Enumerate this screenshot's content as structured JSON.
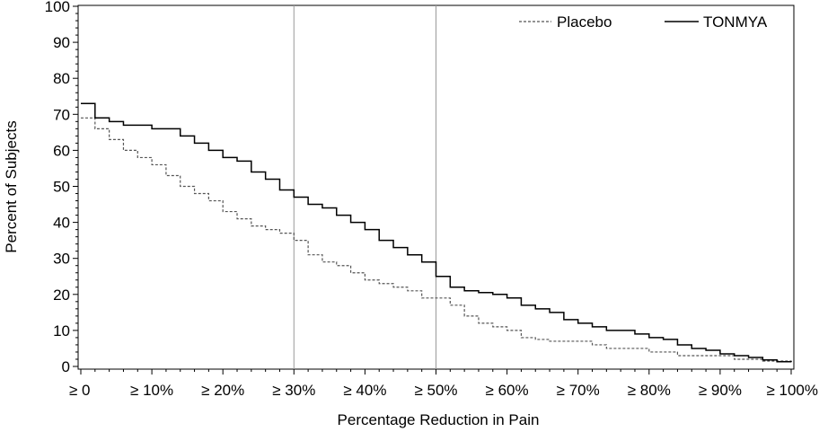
{
  "chart_data": {
    "type": "line",
    "title": "",
    "xlabel": "Percentage Reduction in Pain",
    "ylabel": "Percent of Subjects",
    "xlim": [
      0,
      100
    ],
    "ylim": [
      0,
      100
    ],
    "x_ticks": [
      0,
      10,
      20,
      30,
      40,
      50,
      60,
      70,
      80,
      90,
      100
    ],
    "x_tick_labels": [
      "≥ 0",
      "≥ 10%",
      "≥ 20%",
      "≥ 30%",
      "≥ 40%",
      "≥ 50%",
      "≥ 60%",
      "≥ 70%",
      "≥ 80%",
      "≥ 90%",
      "≥ 100%"
    ],
    "y_ticks": [
      0,
      10,
      20,
      30,
      40,
      50,
      60,
      70,
      80,
      90,
      100
    ],
    "y_tick_labels": [
      "0",
      "10",
      "20",
      "30",
      "40",
      "50",
      "60",
      "70",
      "80",
      "90",
      "100"
    ],
    "reference_lines_x": [
      30,
      50
    ],
    "grid": false,
    "legend_position": "top-right",
    "series": [
      {
        "name": "Placebo",
        "line_style": "dashed",
        "color": "#555555",
        "points": [
          [
            0,
            69
          ],
          [
            2,
            66
          ],
          [
            4,
            63
          ],
          [
            6,
            60
          ],
          [
            8,
            58
          ],
          [
            10,
            56
          ],
          [
            12,
            53
          ],
          [
            14,
            50
          ],
          [
            16,
            48
          ],
          [
            18,
            46
          ],
          [
            20,
            43
          ],
          [
            22,
            41
          ],
          [
            24,
            39
          ],
          [
            26,
            38
          ],
          [
            28,
            37
          ],
          [
            30,
            35
          ],
          [
            32,
            31
          ],
          [
            34,
            29
          ],
          [
            36,
            28
          ],
          [
            38,
            26
          ],
          [
            40,
            24
          ],
          [
            42,
            23
          ],
          [
            44,
            22
          ],
          [
            46,
            21
          ],
          [
            48,
            19
          ],
          [
            50,
            19
          ],
          [
            52,
            17
          ],
          [
            54,
            14
          ],
          [
            56,
            12
          ],
          [
            58,
            11
          ],
          [
            60,
            10
          ],
          [
            62,
            8
          ],
          [
            64,
            7.5
          ],
          [
            66,
            7
          ],
          [
            68,
            7
          ],
          [
            70,
            7
          ],
          [
            72,
            6
          ],
          [
            74,
            5
          ],
          [
            76,
            5
          ],
          [
            78,
            5
          ],
          [
            80,
            4
          ],
          [
            82,
            4
          ],
          [
            84,
            3
          ],
          [
            86,
            3
          ],
          [
            88,
            3
          ],
          [
            90,
            3
          ],
          [
            92,
            2
          ],
          [
            94,
            2
          ],
          [
            96,
            1.5
          ],
          [
            98,
            1.5
          ],
          [
            100,
            1.3
          ]
        ]
      },
      {
        "name": "TONMYA",
        "line_style": "solid",
        "color": "#000000",
        "points": [
          [
            0,
            73
          ],
          [
            2,
            69
          ],
          [
            4,
            68
          ],
          [
            6,
            67
          ],
          [
            8,
            67
          ],
          [
            10,
            66
          ],
          [
            12,
            66
          ],
          [
            14,
            64
          ],
          [
            16,
            62
          ],
          [
            18,
            60
          ],
          [
            20,
            58
          ],
          [
            22,
            57
          ],
          [
            24,
            54
          ],
          [
            26,
            52
          ],
          [
            28,
            49
          ],
          [
            30,
            47
          ],
          [
            32,
            45
          ],
          [
            34,
            44
          ],
          [
            36,
            42
          ],
          [
            38,
            40
          ],
          [
            40,
            38
          ],
          [
            42,
            35
          ],
          [
            44,
            33
          ],
          [
            46,
            31
          ],
          [
            48,
            29
          ],
          [
            50,
            25
          ],
          [
            52,
            22
          ],
          [
            54,
            21
          ],
          [
            56,
            20.5
          ],
          [
            58,
            20
          ],
          [
            60,
            19
          ],
          [
            62,
            17
          ],
          [
            64,
            16
          ],
          [
            66,
            15
          ],
          [
            68,
            13
          ],
          [
            70,
            12
          ],
          [
            72,
            11
          ],
          [
            74,
            10
          ],
          [
            76,
            10
          ],
          [
            78,
            9
          ],
          [
            80,
            8
          ],
          [
            82,
            7.5
          ],
          [
            84,
            6
          ],
          [
            86,
            5
          ],
          [
            88,
            4.5
          ],
          [
            90,
            3.5
          ],
          [
            92,
            3
          ],
          [
            94,
            2.5
          ],
          [
            96,
            1.8
          ],
          [
            98,
            1.3
          ],
          [
            100,
            1.2
          ]
        ]
      }
    ]
  }
}
